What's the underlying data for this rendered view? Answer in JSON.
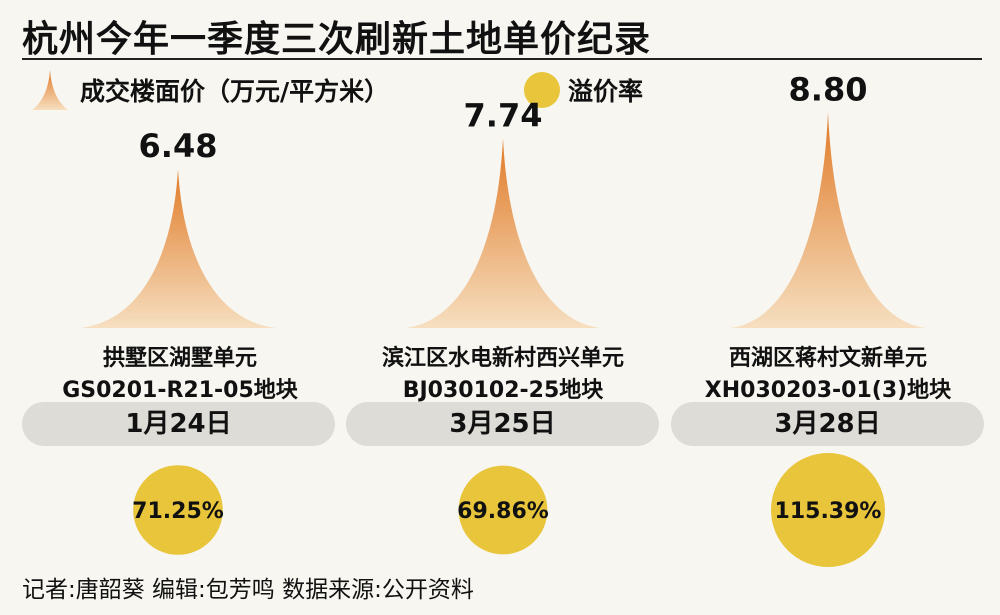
{
  "title": "杭州今年一季度三次刷新土地单价纪录",
  "legend": {
    "price_label": "成交楼面价（万元/平方米）",
    "rate_label": "溢价率"
  },
  "colors": {
    "spike_tip": "#e07a27",
    "spike_base": "#f6dfc0",
    "bubble": "#e8c53a",
    "pill": "#dddcd7"
  },
  "chart_data": {
    "type": "bar",
    "categories": [
      "拱墅区湖墅单元GS0201-R21-05地块",
      "滨江区水电新村西兴单元BJ030102-25地块",
      "西湖区蒋村文新单元XH030203-01(3)地块"
    ],
    "series": [
      {
        "name": "成交楼面价（万元/平方米）",
        "values": [
          6.48,
          7.74,
          8.8
        ],
        "labels": [
          "6.48",
          "7.74",
          "8.80"
        ]
      },
      {
        "name": "溢价率",
        "values": [
          71.25,
          69.86,
          115.39
        ],
        "labels": [
          "71.25%",
          "69.86%",
          "115.39%"
        ]
      }
    ],
    "dates": [
      "1月24日",
      "3月25日",
      "3月28日"
    ]
  },
  "plots": [
    {
      "name_line": "拱墅区湖墅单元",
      "code_line": "GS0201-R21-05地块",
      "date": "1月24日"
    },
    {
      "name_line": "滨江区水电新村西兴单元",
      "code_line": "BJ030102-25地块",
      "date": "3月25日"
    },
    {
      "name_line": "西湖区蒋村文新单元",
      "code_line": "XH030203-01(3)地块",
      "date": "3月28日"
    }
  ],
  "credits": "记者:唐韶葵   编辑:包芳鸣   数据来源:公开资料"
}
